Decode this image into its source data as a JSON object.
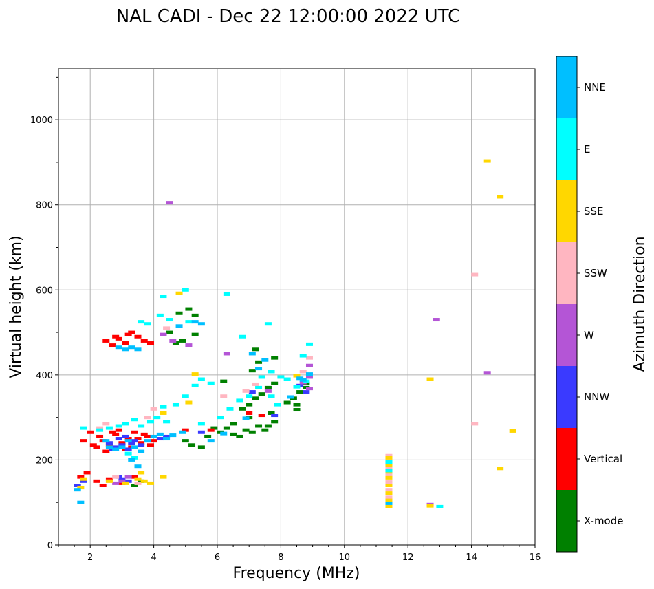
{
  "chart_data": {
    "type": "scatter",
    "title": "NAL CADI - Dec 22 12:00:00 2022 UTC",
    "xlabel": "Frequency (MHz)",
    "ylabel": "Virtual height (km)",
    "xlim": [
      1,
      16
    ],
    "ylim": [
      0,
      1120
    ],
    "xticks": [
      2,
      4,
      6,
      8,
      10,
      12,
      14,
      16
    ],
    "yticks": [
      0,
      200,
      400,
      600,
      800,
      1000
    ],
    "grid": true,
    "colorbar": {
      "label": "Azimuth Direction",
      "categories": [
        {
          "name": "X-mode",
          "color": "#008000"
        },
        {
          "name": "Vertical",
          "color": "#ff0000"
        },
        {
          "name": "NNW",
          "color": "#3a3aff"
        },
        {
          "name": "W",
          "color": "#b455d6"
        },
        {
          "name": "SSW",
          "color": "#ffb6c1"
        },
        {
          "name": "SSE",
          "color": "#ffd700"
        },
        {
          "name": "E",
          "color": "#00ffff"
        },
        {
          "name": "NNE",
          "color": "#00bfff"
        }
      ]
    },
    "series": [
      {
        "name": "X-mode",
        "points": [
          [
            4.7,
            475
          ],
          [
            4.9,
            480
          ],
          [
            5.3,
            495
          ],
          [
            5.3,
            540
          ],
          [
            5.1,
            555
          ],
          [
            4.8,
            545
          ],
          [
            4.5,
            500
          ],
          [
            5.0,
            245
          ],
          [
            5.2,
            235
          ],
          [
            5.5,
            230
          ],
          [
            5.7,
            255
          ],
          [
            5.9,
            275
          ],
          [
            6.1,
            265
          ],
          [
            6.3,
            275
          ],
          [
            6.5,
            260
          ],
          [
            6.7,
            255
          ],
          [
            6.9,
            270
          ],
          [
            7.1,
            265
          ],
          [
            7.3,
            280
          ],
          [
            7.5,
            270
          ],
          [
            7.6,
            280
          ],
          [
            7.8,
            290
          ],
          [
            6.8,
            320
          ],
          [
            7.0,
            330
          ],
          [
            7.2,
            345
          ],
          [
            7.4,
            355
          ],
          [
            7.6,
            370
          ],
          [
            7.8,
            380
          ],
          [
            7.1,
            410
          ],
          [
            7.3,
            430
          ],
          [
            7.8,
            440
          ],
          [
            8.2,
            335
          ],
          [
            8.4,
            345
          ],
          [
            8.5,
            330
          ],
          [
            8.5,
            318
          ],
          [
            8.6,
            360
          ],
          [
            8.8,
            370
          ],
          [
            8.8,
            380
          ],
          [
            6.5,
            285
          ],
          [
            7.0,
            300
          ],
          [
            7.7,
            310
          ],
          [
            3.4,
            140
          ],
          [
            3.6,
            150
          ],
          [
            6.2,
            385
          ],
          [
            7.2,
            460
          ]
        ]
      },
      {
        "name": "Vertical",
        "points": [
          [
            2.5,
            480
          ],
          [
            2.7,
            470
          ],
          [
            2.9,
            485
          ],
          [
            3.1,
            475
          ],
          [
            3.3,
            500
          ],
          [
            3.5,
            490
          ],
          [
            3.7,
            480
          ],
          [
            3.9,
            475
          ],
          [
            2.8,
            490
          ],
          [
            3.2,
            495
          ],
          [
            2.2,
            230
          ],
          [
            2.4,
            245
          ],
          [
            2.6,
            235
          ],
          [
            2.8,
            260
          ],
          [
            3.0,
            240
          ],
          [
            3.2,
            250
          ],
          [
            3.4,
            265
          ],
          [
            3.6,
            240
          ],
          [
            3.8,
            255
          ],
          [
            2.3,
            255
          ],
          [
            2.5,
            220
          ],
          [
            2.7,
            265
          ],
          [
            2.9,
            270
          ],
          [
            3.1,
            225
          ],
          [
            3.3,
            230
          ],
          [
            3.5,
            250
          ],
          [
            3.7,
            260
          ],
          [
            3.9,
            235
          ],
          [
            4.0,
            245
          ],
          [
            1.8,
            245
          ],
          [
            2.0,
            265
          ],
          [
            2.2,
            150
          ],
          [
            2.4,
            140
          ],
          [
            2.6,
            155
          ],
          [
            3.0,
            145
          ],
          [
            3.4,
            160
          ],
          [
            1.7,
            160
          ],
          [
            1.9,
            170
          ],
          [
            5.0,
            270
          ],
          [
            5.8,
            270
          ],
          [
            7.0,
            310
          ],
          [
            7.4,
            305
          ],
          [
            2.1,
            235
          ]
        ]
      },
      {
        "name": "NNW",
        "points": [
          [
            2.6,
            240
          ],
          [
            2.8,
            230
          ],
          [
            3.0,
            235
          ],
          [
            3.2,
            225
          ],
          [
            3.4,
            245
          ],
          [
            3.6,
            235
          ],
          [
            2.7,
            225
          ],
          [
            2.9,
            250
          ],
          [
            3.1,
            255
          ],
          [
            3.3,
            240
          ],
          [
            3.0,
            155
          ],
          [
            3.2,
            150
          ],
          [
            2.9,
            160
          ],
          [
            1.6,
            140
          ],
          [
            1.8,
            150
          ],
          [
            4.2,
            250
          ],
          [
            4.4,
            255
          ],
          [
            5.5,
            265
          ],
          [
            7.1,
            360
          ],
          [
            7.8,
            305
          ],
          [
            8.6,
            375
          ],
          [
            8.8,
            360
          ]
        ]
      },
      {
        "name": "W",
        "points": [
          [
            4.5,
            805
          ],
          [
            6.3,
            450
          ],
          [
            8.9,
            422
          ],
          [
            8.9,
            395
          ],
          [
            8.7,
            382
          ],
          [
            8.9,
            368
          ],
          [
            12.9,
            530
          ],
          [
            14.5,
            405
          ],
          [
            12.7,
            95
          ],
          [
            4.3,
            495
          ],
          [
            4.6,
            480
          ],
          [
            5.1,
            470
          ],
          [
            3.0,
            150
          ],
          [
            3.2,
            160
          ],
          [
            7.6,
            362
          ],
          [
            2.8,
            145
          ]
        ]
      },
      {
        "name": "SSW",
        "points": [
          [
            4.0,
            320
          ],
          [
            3.8,
            300
          ],
          [
            4.4,
            510
          ],
          [
            6.2,
            350
          ],
          [
            6.9,
            362
          ],
          [
            7.2,
            378
          ],
          [
            8.7,
            408
          ],
          [
            8.9,
            440
          ],
          [
            14.1,
            636
          ],
          [
            14.1,
            285
          ],
          [
            11.4,
            210
          ],
          [
            11.4,
            200
          ],
          [
            11.4,
            180
          ],
          [
            11.4,
            165
          ],
          [
            11.4,
            148
          ],
          [
            11.4,
            130
          ],
          [
            11.4,
            112
          ],
          [
            2.6,
            150
          ],
          [
            2.8,
            160
          ],
          [
            3.5,
            145
          ],
          [
            2.3,
            275
          ],
          [
            2.5,
            285
          ]
        ]
      },
      {
        "name": "SSE",
        "points": [
          [
            4.8,
            592
          ],
          [
            4.3,
            310
          ],
          [
            5.3,
            402
          ],
          [
            8.5,
            398
          ],
          [
            12.7,
            390
          ],
          [
            14.5,
            903
          ],
          [
            14.9,
            819
          ],
          [
            15.3,
            268
          ],
          [
            14.9,
            180
          ],
          [
            11.4,
            205
          ],
          [
            11.4,
            188
          ],
          [
            11.4,
            172
          ],
          [
            11.4,
            158
          ],
          [
            11.4,
            140
          ],
          [
            11.4,
            122
          ],
          [
            11.4,
            105
          ],
          [
            11.4,
            90
          ],
          [
            12.7,
            92
          ],
          [
            3.7,
            150
          ],
          [
            3.9,
            145
          ],
          [
            3.5,
            155
          ],
          [
            3.6,
            170
          ],
          [
            4.3,
            160
          ],
          [
            2.6,
            150
          ],
          [
            1.7,
            135
          ],
          [
            1.8,
            155
          ],
          [
            5.1,
            335
          ],
          [
            3.1,
            145
          ]
        ]
      },
      {
        "name": "E",
        "points": [
          [
            4.3,
            585
          ],
          [
            5.0,
            600
          ],
          [
            5.1,
            525
          ],
          [
            4.2,
            540
          ],
          [
            4.5,
            530
          ],
          [
            3.6,
            525
          ],
          [
            3.8,
            520
          ],
          [
            6.3,
            590
          ],
          [
            6.8,
            490
          ],
          [
            7.6,
            520
          ],
          [
            8.9,
            472
          ],
          [
            7.7,
            408
          ],
          [
            8.7,
            445
          ],
          [
            8.5,
            372
          ],
          [
            8.2,
            390
          ],
          [
            8.0,
            395
          ],
          [
            7.4,
            395
          ],
          [
            5.0,
            350
          ],
          [
            5.3,
            375
          ],
          [
            5.5,
            390
          ],
          [
            5.8,
            380
          ],
          [
            4.7,
            330
          ],
          [
            4.3,
            325
          ],
          [
            4.4,
            290
          ],
          [
            4.1,
            300
          ],
          [
            3.9,
            290
          ],
          [
            3.6,
            280
          ],
          [
            3.4,
            295
          ],
          [
            3.1,
            285
          ],
          [
            2.9,
            280
          ],
          [
            2.6,
            275
          ],
          [
            2.3,
            270
          ],
          [
            6.1,
            300
          ],
          [
            6.4,
            320
          ],
          [
            6.7,
            340
          ],
          [
            7.0,
            350
          ],
          [
            7.3,
            370
          ],
          [
            7.9,
            330
          ],
          [
            7.7,
            350
          ],
          [
            13.0,
            90
          ],
          [
            11.4,
            195
          ],
          [
            11.4,
            175
          ],
          [
            1.8,
            275
          ],
          [
            3.2,
            215
          ],
          [
            3.4,
            205
          ],
          [
            5.5,
            285
          ],
          [
            8.8,
            385
          ]
        ]
      },
      {
        "name": "NNE",
        "points": [
          [
            2.9,
            465
          ],
          [
            3.1,
            460
          ],
          [
            3.3,
            465
          ],
          [
            3.5,
            460
          ],
          [
            5.3,
            525
          ],
          [
            4.8,
            515
          ],
          [
            5.5,
            520
          ],
          [
            7.1,
            450
          ],
          [
            7.5,
            435
          ],
          [
            8.6,
            392
          ],
          [
            8.9,
            402
          ],
          [
            8.7,
            388
          ],
          [
            8.3,
            348
          ],
          [
            2.6,
            230
          ],
          [
            2.8,
            225
          ],
          [
            3.0,
            230
          ],
          [
            3.2,
            245
          ],
          [
            3.4,
            230
          ],
          [
            3.6,
            220
          ],
          [
            3.8,
            245
          ],
          [
            4.0,
            255
          ],
          [
            4.2,
            260
          ],
          [
            4.4,
            250
          ],
          [
            4.6,
            258
          ],
          [
            5.8,
            245
          ],
          [
            6.2,
            262
          ],
          [
            6.9,
            298
          ],
          [
            3.3,
            200
          ],
          [
            3.5,
            185
          ],
          [
            1.6,
            130
          ],
          [
            1.7,
            100
          ],
          [
            11.4,
            98
          ],
          [
            7.3,
            415
          ],
          [
            4.9,
            265
          ],
          [
            2.5,
            245
          ]
        ]
      }
    ]
  }
}
